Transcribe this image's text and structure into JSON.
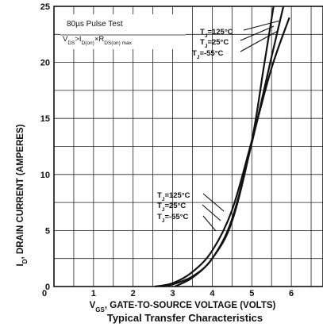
{
  "chart_data": {
    "type": "line",
    "title": "",
    "caption": "Typical Transfer Characteristics",
    "xlabel": "V_GS, GATE-TO-SOURCE VOLTAGE (VOLTS)",
    "xlabel_parts": {
      "main": "V",
      "sub": "GS",
      "rest": ", GATE-TO-SOURCE VOLTAGE (VOLTS)"
    },
    "ylabel": "I_D, DRAIN CURRENT (AMPERES)",
    "ylabel_parts": {
      "main": "I",
      "sub": "D",
      "rest": ", DRAIN CURRENT (AMPERES)"
    },
    "xlim": [
      0,
      6.8
    ],
    "ylim": [
      0,
      25
    ],
    "xticks": [
      0,
      1,
      2,
      3,
      4,
      5,
      6
    ],
    "yticks": [
      0,
      5,
      10,
      15,
      20,
      25
    ],
    "grid": true,
    "test_note": {
      "line1": "80µs Pulse Test",
      "line2": "V_DS > I_D(on) × R_DS(on) max"
    },
    "series": [
      {
        "name": "T_J = -55°C",
        "x": [
          2.55,
          3.0,
          3.5,
          4.0,
          4.5,
          5.0,
          5.5,
          5.95
        ],
        "y": [
          0,
          0.3,
          1.3,
          3.2,
          6.8,
          13.0,
          19.5,
          24.0
        ]
      },
      {
        "name": "T_J = 25°C",
        "x": [
          2.75,
          3.0,
          3.5,
          4.0,
          4.5,
          5.0,
          5.5,
          5.8
        ],
        "y": [
          0,
          0.2,
          0.9,
          2.5,
          6.0,
          12.8,
          20.5,
          25.0
        ]
      },
      {
        "name": "T_J = 125°C",
        "x": [
          3.05,
          3.5,
          4.0,
          4.5,
          5.0,
          5.3,
          5.55
        ],
        "y": [
          0,
          0.8,
          2.5,
          5.8,
          13.0,
          19.5,
          25.0
        ]
      }
    ],
    "annotations_upper": [
      "T_J=125°C",
      "T_J=25°C",
      "T_J=-55°C"
    ],
    "annotations_lower": [
      "T_J=125°C",
      "T_J=25°C",
      "T_J=-55°C"
    ]
  }
}
